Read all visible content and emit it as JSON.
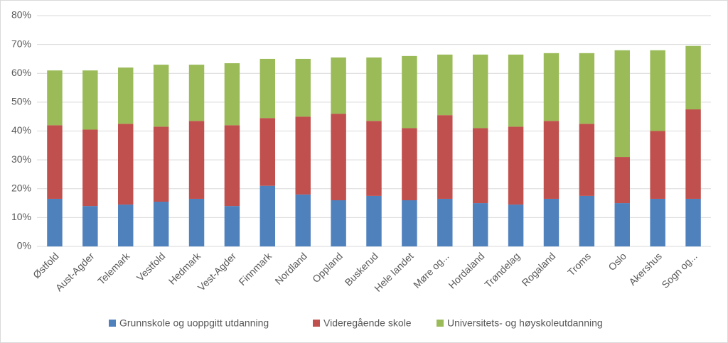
{
  "chart_data": {
    "type": "stacked-bar",
    "categories": [
      "Østfold",
      "Aust-Agder",
      "Telemark",
      "Vestfold",
      "Hedmark",
      "Vest-Agder",
      "Finnmark",
      "Nordland",
      "Oppland",
      "Buskerud",
      "Hele landet",
      "Møre og...",
      "Hordaland",
      "Trøndelag",
      "Rogaland",
      "Troms",
      "Oslo",
      "Akershus",
      "Sogn og..."
    ],
    "series": [
      {
        "name": "Grunnskole og uoppgitt utdanning",
        "color": "#4f81bd",
        "values": [
          16.5,
          14,
          14.5,
          15.5,
          16.5,
          14,
          21,
          18,
          16,
          17.5,
          16,
          16.5,
          15,
          14.5,
          16.5,
          17.5,
          15,
          16.5,
          16.5
        ]
      },
      {
        "name": "Videregående skole",
        "color": "#c0504d",
        "values": [
          25.5,
          26.5,
          28,
          26,
          27,
          28,
          23.5,
          27,
          30,
          26,
          25,
          29,
          26,
          27,
          27,
          25,
          16,
          23.5,
          31
        ]
      },
      {
        "name": "Universitets- og høyskoleutdanning",
        "color": "#9bbb59",
        "values": [
          19,
          20.5,
          19.5,
          21.5,
          19.5,
          21.5,
          20.5,
          20,
          19.5,
          22,
          25,
          21,
          25.5,
          25,
          23.5,
          24.5,
          37,
          28,
          22
        ]
      }
    ],
    "ylim": [
      0,
      80
    ],
    "yticks": [
      {
        "value": 0,
        "label": "0%"
      },
      {
        "value": 10,
        "label": "10%"
      },
      {
        "value": 20,
        "label": "20%"
      },
      {
        "value": 30,
        "label": "30%"
      },
      {
        "value": 40,
        "label": "40%"
      },
      {
        "value": 50,
        "label": "50%"
      },
      {
        "value": 60,
        "label": "60%"
      },
      {
        "value": 70,
        "label": "70%"
      },
      {
        "value": 80,
        "label": "80%"
      }
    ],
    "grid": true
  }
}
